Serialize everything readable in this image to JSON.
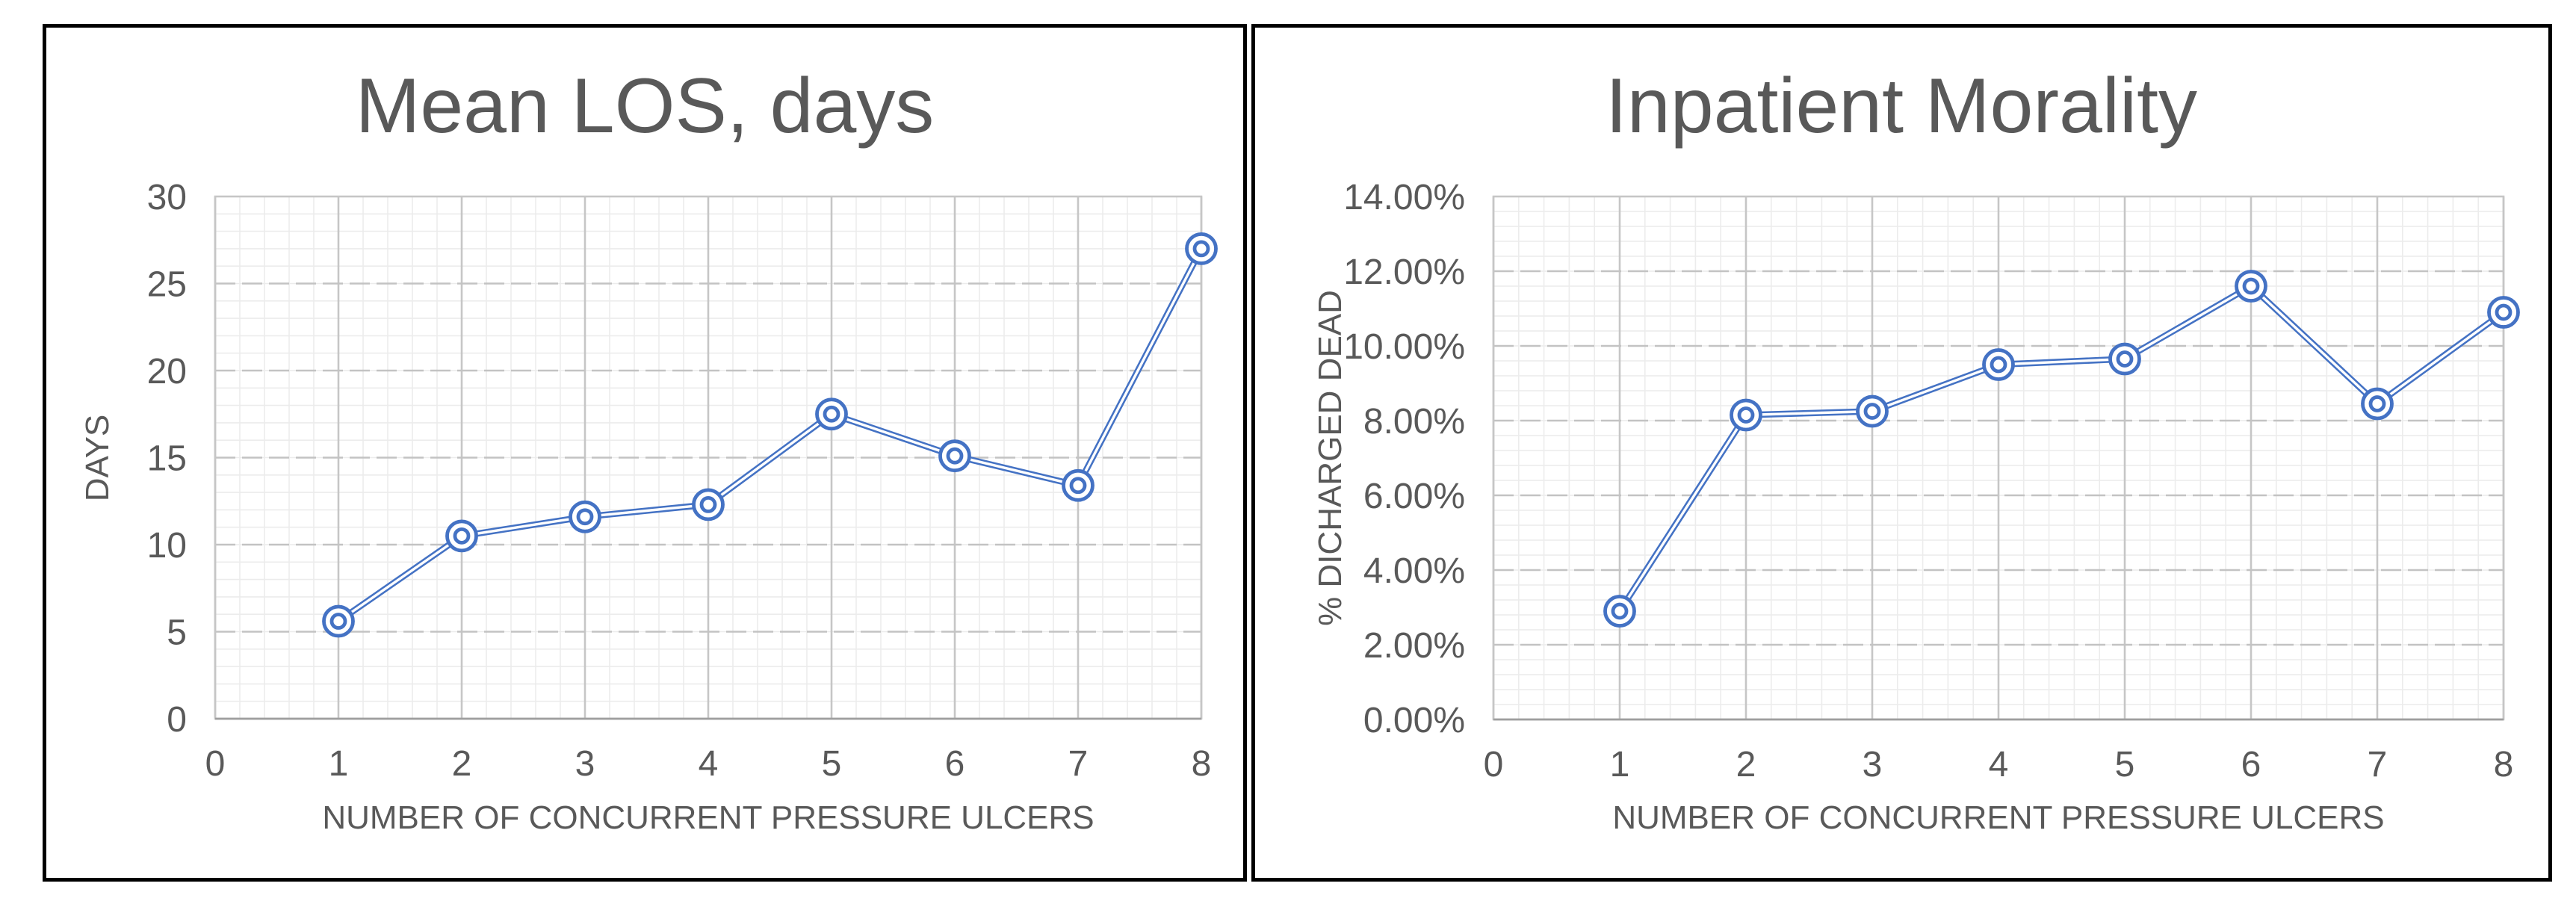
{
  "page": {
    "background": "#ffffff",
    "panel_border_color": "#000000"
  },
  "colors": {
    "series_blue": "#4472C4",
    "text_gray": "#595959",
    "major_grid": "#c3c3c3",
    "major_grid_vertical": "#c6c6c6",
    "minor_grid": "#ececec",
    "plot_border": "#c6c6c6",
    "axis_line": "#9e9e9e",
    "marker_fill": "#ffffff"
  },
  "chart_data": [
    {
      "type": "line",
      "title": "Mean LOS, days",
      "xlabel": "NUMBER OF CONCURRENT PRESSURE ULCERS",
      "ylabel": "DAYS",
      "x": [
        1,
        2,
        3,
        4,
        5,
        6,
        7,
        8
      ],
      "values": [
        5.6,
        10.5,
        11.6,
        12.3,
        17.5,
        15.1,
        13.4,
        27.0
      ],
      "xlim": [
        0,
        8
      ],
      "ylim": [
        0,
        30
      ],
      "x_major_step": 1,
      "x_minor_step": 0.2,
      "y_major_step": 5,
      "y_minor_step": 1,
      "x_tick_labels": [
        "0",
        "1",
        "2",
        "3",
        "4",
        "5",
        "6",
        "7",
        "8"
      ],
      "y_tick_labels": [
        "0",
        "5",
        "10",
        "15",
        "20",
        "25",
        "30"
      ],
      "grid": "major-dashed-horizontal, major-solid-vertical, fine-minor-mesh",
      "legend": "none",
      "marker": "double-circle-bullseye",
      "line_style": "double-line"
    },
    {
      "type": "line",
      "title": "Inpatient Morality",
      "xlabel": "NUMBER OF CONCURRENT PRESSURE ULCERS",
      "ylabel": "% DICHARGED DEAD",
      "x": [
        1,
        2,
        3,
        4,
        5,
        6,
        7,
        8
      ],
      "values": [
        2.9,
        8.15,
        8.25,
        9.5,
        9.65,
        11.6,
        8.45,
        10.9
      ],
      "values_unit": "percent",
      "xlim": [
        0,
        8
      ],
      "ylim": [
        0,
        14
      ],
      "x_major_step": 1,
      "x_minor_step": 0.2,
      "y_major_step": 2,
      "y_minor_step": 0.4,
      "x_tick_labels": [
        "0",
        "1",
        "2",
        "3",
        "4",
        "5",
        "6",
        "7",
        "8"
      ],
      "y_tick_labels": [
        "0.00%",
        "2.00%",
        "4.00%",
        "6.00%",
        "8.00%",
        "10.00%",
        "12.00%",
        "14.00%"
      ],
      "grid": "major-dashed-horizontal, major-solid-vertical, fine-minor-mesh",
      "legend": "none",
      "marker": "double-circle-bullseye",
      "line_style": "double-line"
    }
  ]
}
